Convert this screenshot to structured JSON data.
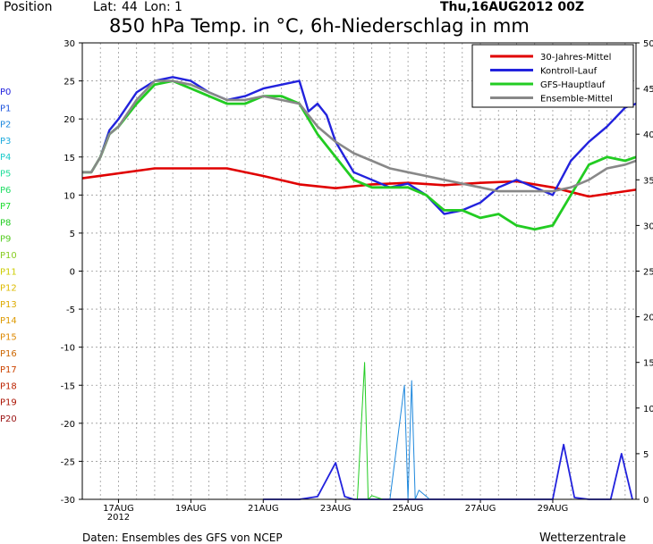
{
  "header": {
    "position_label": "Position",
    "lat_label": "Lat:",
    "lat_value": "44",
    "lon_label": "Lon:",
    "lon_value": "1",
    "run_time": "Thu,16AUG2012 00Z",
    "title": "850 hPa Temp. in °C, 6h-Niederschlag in mm"
  },
  "footer": {
    "source": "Daten: Ensembles des GFS von NCEP",
    "brand": "Wetterzentrale"
  },
  "chart_data": {
    "type": "line",
    "x_unit": "forecast time (6h steps from 16AUG2012 00Z)",
    "x_tick_labels": [
      "17AUG\n2012",
      "19AUG",
      "21AUG",
      "23AUG",
      "25AUG",
      "27AUG",
      "29AUG"
    ],
    "x_tick_times": [
      1,
      3,
      5,
      7,
      9,
      11,
      13
    ],
    "xlim": [
      0,
      15.3
    ],
    "ylim_left": [
      -30,
      30
    ],
    "ylim_right": [
      0,
      50
    ],
    "left_ticks": [
      -30,
      -25,
      -20,
      -15,
      -10,
      -5,
      0,
      5,
      10,
      15,
      20,
      25,
      30
    ],
    "right_ticks": [
      0,
      5,
      10,
      15,
      20,
      25,
      30,
      35,
      40,
      45,
      50
    ],
    "grid": true,
    "legend_position": "top-right",
    "legend": [
      {
        "label": "30-Jahres-Mittel",
        "color": "#e00000"
      },
      {
        "label": "Kontroll-Lauf",
        "color": "#2222dd"
      },
      {
        "label": "GFS-Hauptlauf",
        "color": "#22cc22"
      },
      {
        "label": "Ensemble-Mittel",
        "color": "#888888"
      }
    ],
    "member_labels": [
      "P0",
      "P1",
      "P2",
      "P3",
      "P4",
      "P5",
      "P6",
      "P7",
      "P8",
      "P9",
      "P10",
      "P11",
      "P12",
      "P13",
      "P14",
      "P15",
      "P16",
      "P17",
      "P18",
      "P19",
      "P20"
    ],
    "member_colors": [
      "#2222dd",
      "#1e55dd",
      "#1e88dd",
      "#1eaadd",
      "#1ecccc",
      "#1edd99",
      "#22dd66",
      "#22dd33",
      "#22cc22",
      "#55cc22",
      "#88cc22",
      "#cccc00",
      "#ddbb00",
      "#ddaa00",
      "#dd9900",
      "#dd8800",
      "#cc6600",
      "#cc4400",
      "#bb2200",
      "#aa1100",
      "#991111"
    ],
    "series": [
      {
        "name": "30-Jahres-Mittel",
        "color": "#e00000",
        "width": 2.6,
        "x": [
          0,
          2,
          3,
          4,
          5,
          6,
          7,
          8,
          9,
          10,
          11,
          12,
          13,
          14,
          15.3
        ],
        "y": [
          12.2,
          13.5,
          13.5,
          13.5,
          12.5,
          11.4,
          10.9,
          11.4,
          11.6,
          11.3,
          11.6,
          11.8,
          11.0,
          9.8,
          10.7
        ]
      },
      {
        "name": "Kontroll-Lauf",
        "color": "#2222dd",
        "width": 2.4,
        "x": [
          0,
          0.25,
          0.5,
          0.75,
          1,
          1.5,
          2,
          2.5,
          3,
          3.5,
          4,
          4.5,
          5,
          5.5,
          6,
          6.25,
          6.5,
          6.75,
          7,
          7.5,
          8,
          8.5,
          9,
          9.5,
          10,
          10.5,
          11,
          11.5,
          12,
          12.5,
          13,
          13.5,
          14,
          14.5,
          15,
          15.3
        ],
        "y": [
          13,
          13,
          15,
          18.5,
          20,
          23.5,
          25,
          25.5,
          25,
          23.5,
          22.5,
          23,
          24,
          24.5,
          25,
          21,
          22,
          20.5,
          17,
          13,
          12,
          11,
          11.5,
          10,
          7.5,
          8,
          9,
          11,
          12,
          11,
          10,
          14.5,
          17,
          19,
          21.5,
          22
        ]
      },
      {
        "name": "GFS-Hauptlauf",
        "color": "#22cc22",
        "width": 2.8,
        "x": [
          0,
          0.25,
          0.5,
          0.75,
          1,
          1.5,
          2,
          2.5,
          3,
          3.5,
          4,
          4.5,
          5,
          5.5,
          6,
          6.5,
          7,
          7.5,
          8,
          8.5,
          9,
          9.5,
          10,
          10.5,
          11,
          11.5,
          12,
          12.5,
          13,
          13.5,
          14,
          14.5,
          15,
          15.3
        ],
        "y": [
          13,
          13,
          15,
          18,
          19,
          22,
          24.5,
          25,
          24,
          23,
          22,
          22,
          23,
          23,
          22,
          18,
          15,
          12,
          11,
          11,
          11,
          10,
          8,
          8,
          7,
          7.5,
          6,
          5.5,
          6,
          10,
          14,
          15,
          14.5,
          15
        ]
      },
      {
        "name": "Ensemble-Mittel",
        "color": "#888888",
        "width": 2.6,
        "x": [
          0,
          0.25,
          0.5,
          0.75,
          1,
          1.5,
          2,
          2.5,
          3,
          3.5,
          4,
          4.5,
          5,
          5.5,
          6,
          6.5,
          7,
          7.5,
          8,
          8.5,
          9,
          9.5,
          10,
          10.5,
          11,
          11.5,
          12,
          12.5,
          13,
          13.5,
          14,
          14.5,
          15,
          15.3
        ],
        "y": [
          13,
          13,
          15,
          18,
          19,
          22.5,
          25,
          25,
          24.5,
          23.5,
          22.5,
          22.5,
          23,
          22.5,
          22,
          19,
          17,
          15.5,
          14.5,
          13.5,
          13,
          12.5,
          12,
          11.5,
          11,
          10.5,
          10.5,
          10.5,
          10.5,
          11,
          12,
          13.5,
          14,
          14.5
        ]
      },
      {
        "name": "P0",
        "axis": "right",
        "color": "#2222dd",
        "width": 1.8,
        "x": [
          5,
          6,
          6.5,
          7,
          7.25,
          7.5,
          8,
          8.5,
          13,
          13.3,
          13.6,
          14,
          14.6,
          14.9,
          15.2
        ],
        "y": [
          0,
          0,
          0.3,
          4,
          0.3,
          0,
          0,
          0,
          0,
          6,
          0.2,
          0,
          0,
          5,
          0
        ]
      },
      {
        "name": "precip-members",
        "axis": "right",
        "color": "#1e88dd",
        "width": 1,
        "x": [
          8.5,
          8.9,
          9.0,
          9.1,
          9.2,
          9.3,
          9.6
        ],
        "y": [
          0,
          12.5,
          0,
          13,
          0,
          1,
          0
        ]
      },
      {
        "name": "precip-green",
        "axis": "right",
        "color": "#22cc22",
        "width": 1,
        "x": [
          7.6,
          7.8,
          7.9,
          8.0,
          8.3
        ],
        "y": [
          0,
          15,
          0,
          0.4,
          0
        ]
      }
    ]
  }
}
